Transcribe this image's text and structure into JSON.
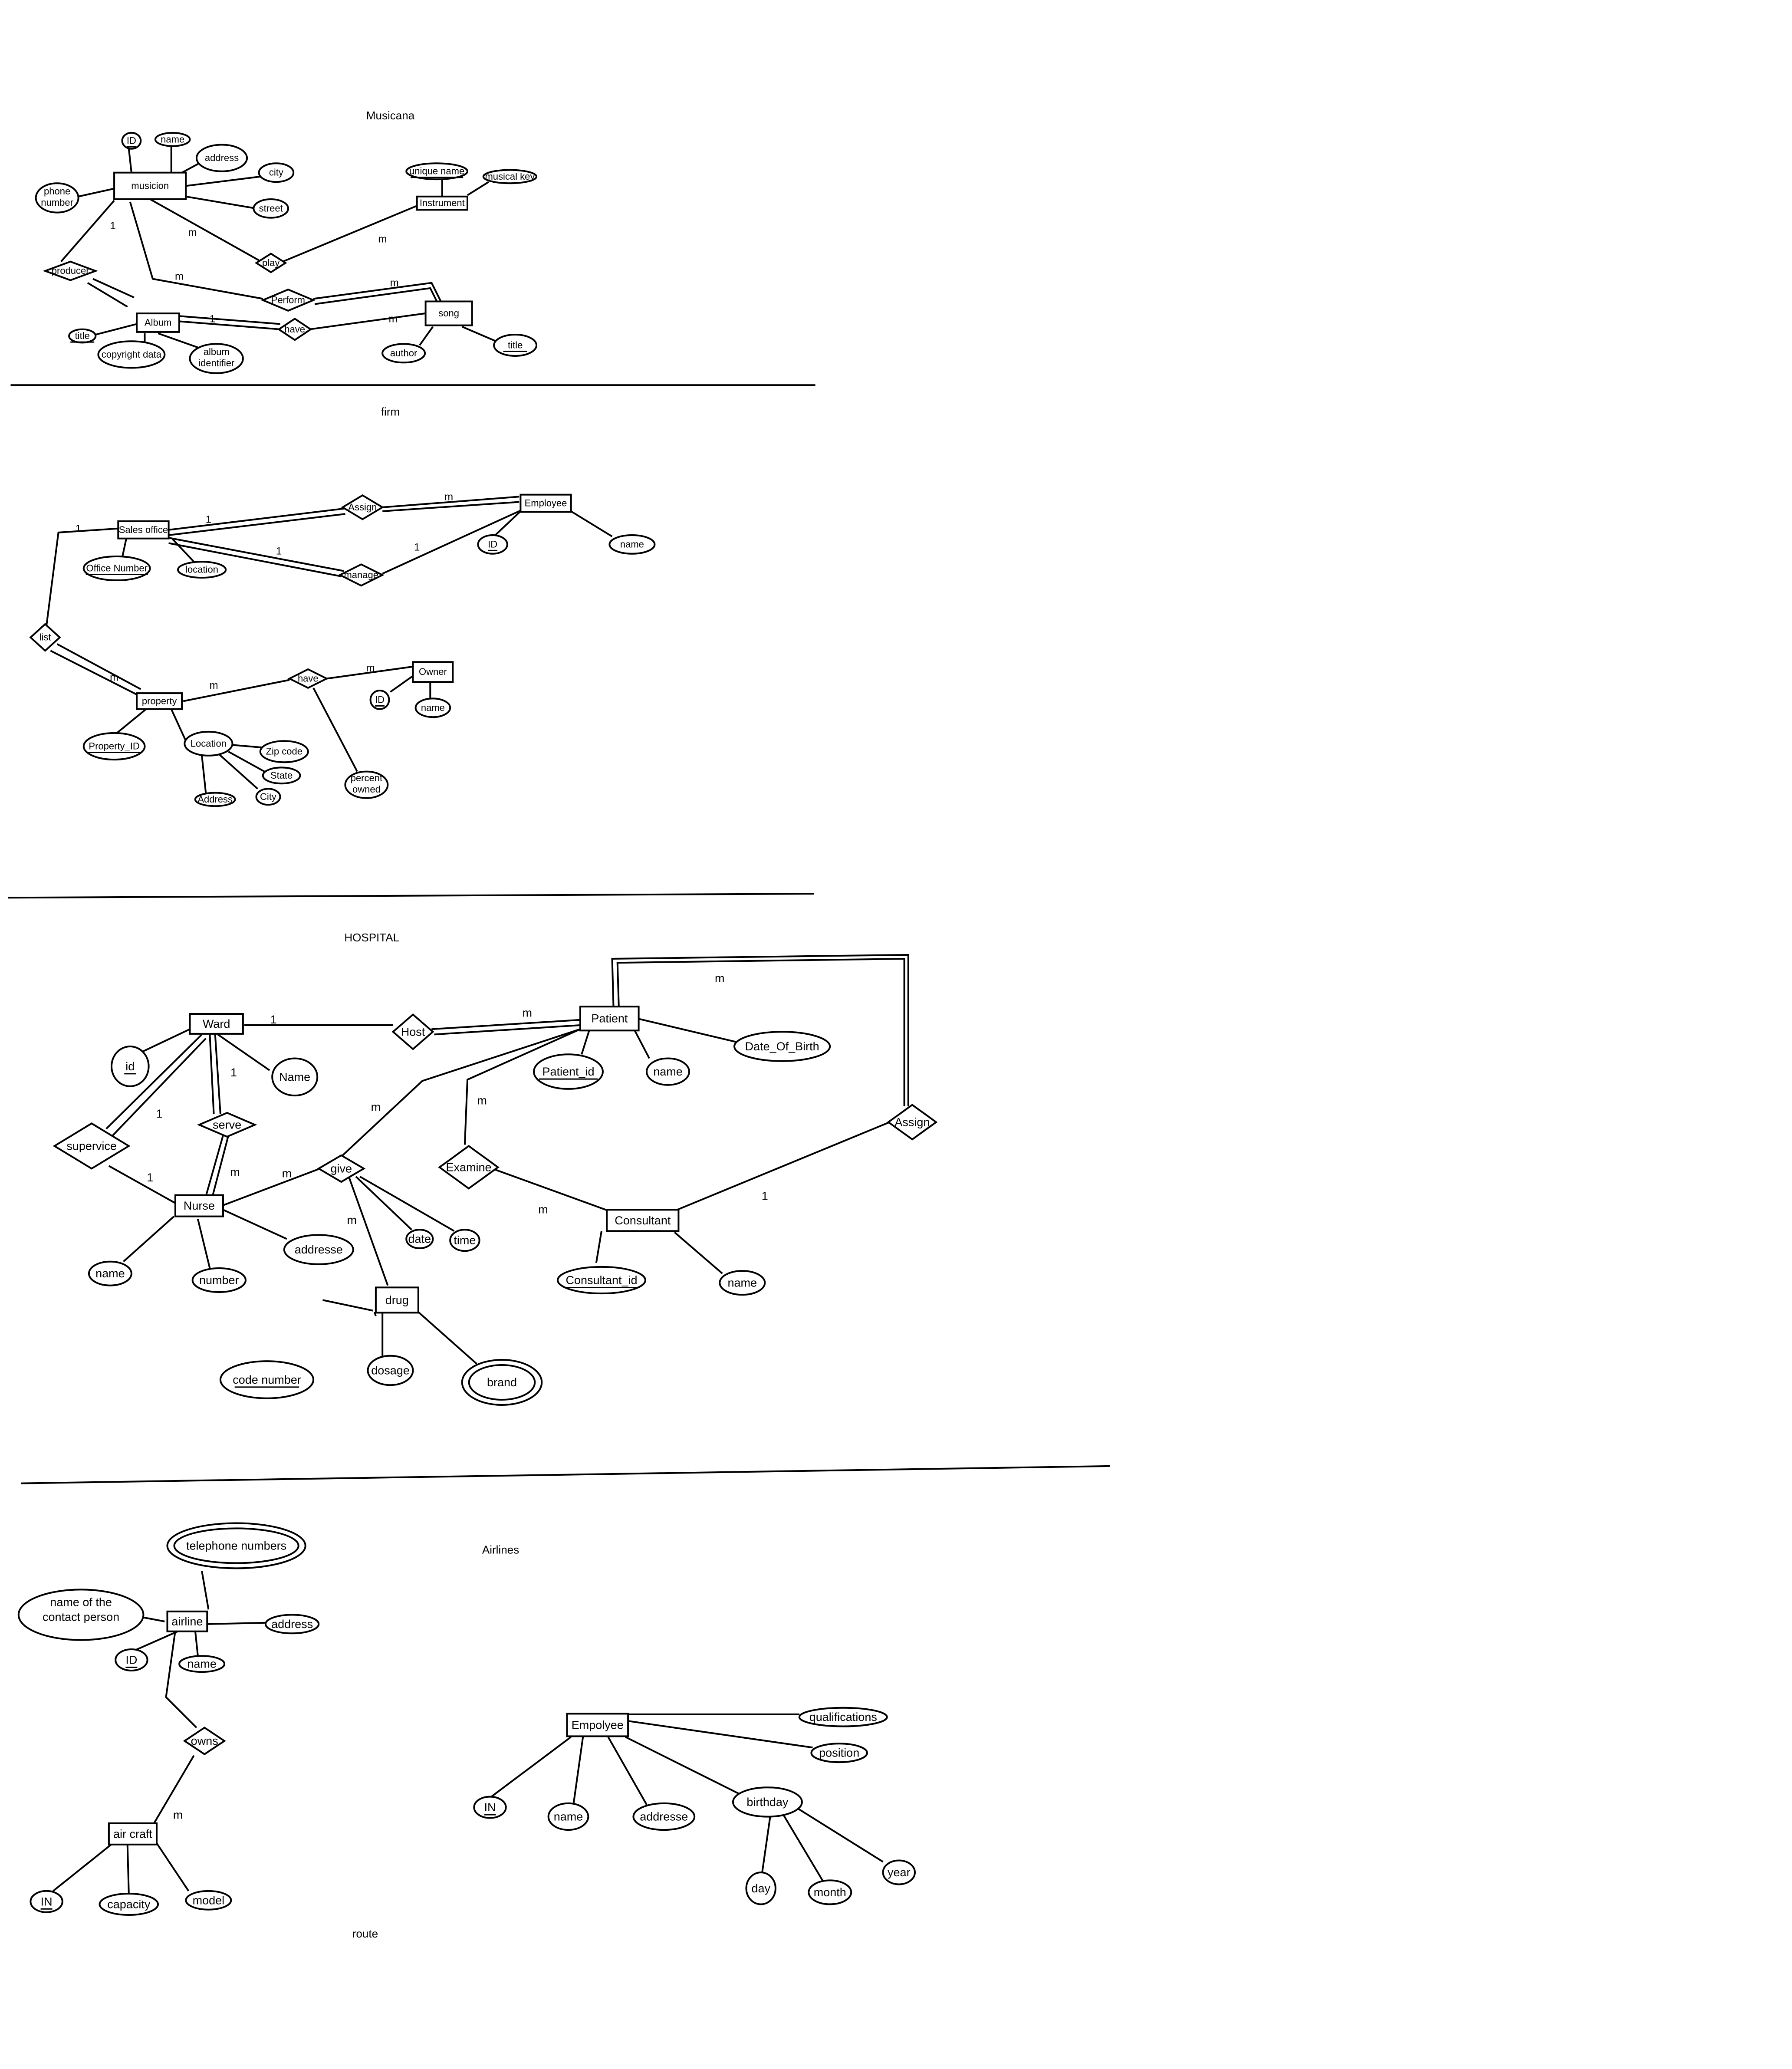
{
  "sections": [
    {
      "id": "musicana",
      "title": "Musicana"
    },
    {
      "id": "firm",
      "title": "firm"
    },
    {
      "id": "hospital",
      "title": "HOSPITAL"
    },
    {
      "id": "airlines",
      "title": "Airlines"
    },
    {
      "id": "route",
      "title": "route"
    }
  ],
  "entities": [
    {
      "id": "musicion",
      "label": "musicion"
    },
    {
      "id": "instrument",
      "label": "Instrument"
    },
    {
      "id": "album",
      "label": "Album"
    },
    {
      "id": "song",
      "label": "song"
    },
    {
      "id": "sales_office",
      "label": "Sales office"
    },
    {
      "id": "employee_firm",
      "label": "Employee"
    },
    {
      "id": "property",
      "label": "property"
    },
    {
      "id": "owner",
      "label": "Owner"
    },
    {
      "id": "ward",
      "label": "Ward"
    },
    {
      "id": "patient",
      "label": "Patient"
    },
    {
      "id": "nurse",
      "label": "Nurse"
    },
    {
      "id": "consultant",
      "label": "Consultant"
    },
    {
      "id": "drug",
      "label": "drug"
    },
    {
      "id": "airline",
      "label": "airline"
    },
    {
      "id": "aircraft",
      "label": "air craft"
    },
    {
      "id": "empolyee",
      "label": "Empolyee"
    }
  ],
  "relationships": [
    {
      "id": "producer",
      "label": "producer"
    },
    {
      "id": "play",
      "label": "play"
    },
    {
      "id": "perform",
      "label": "Perform"
    },
    {
      "id": "have_music",
      "label": "have"
    },
    {
      "id": "assign_firm",
      "label": "Assign"
    },
    {
      "id": "manage",
      "label": "manage"
    },
    {
      "id": "list",
      "label": "list"
    },
    {
      "id": "have_firm",
      "label": "have"
    },
    {
      "id": "host",
      "label": "Host"
    },
    {
      "id": "supervice",
      "label": "supervice"
    },
    {
      "id": "serve",
      "label": "serve"
    },
    {
      "id": "give",
      "label": "give"
    },
    {
      "id": "examine",
      "label": "Examine"
    },
    {
      "id": "assign_hosp",
      "label": "Assign"
    },
    {
      "id": "owns",
      "label": "owns"
    }
  ],
  "attributes": [
    {
      "id": "m_id",
      "label": "ID",
      "key": true
    },
    {
      "id": "m_name",
      "label": "name"
    },
    {
      "id": "m_address",
      "label": "address"
    },
    {
      "id": "m_city",
      "label": "city"
    },
    {
      "id": "m_street",
      "label": "street"
    },
    {
      "id": "m_phone",
      "label": "phone number"
    },
    {
      "id": "i_unique",
      "label": "unique name",
      "key": true
    },
    {
      "id": "i_key",
      "label": "musical key"
    },
    {
      "id": "a_title",
      "label": "title",
      "key": true
    },
    {
      "id": "a_copy",
      "label": "copyright data"
    },
    {
      "id": "a_ident",
      "label": "album identifier"
    },
    {
      "id": "s_author",
      "label": "author"
    },
    {
      "id": "s_title",
      "label": "title",
      "key": true
    },
    {
      "id": "so_num",
      "label": "Office Number",
      "key": true
    },
    {
      "id": "so_loc",
      "label": "location"
    },
    {
      "id": "e_id",
      "label": "ID",
      "key": true
    },
    {
      "id": "e_name",
      "label": "name"
    },
    {
      "id": "p_id",
      "label": "Property_ID",
      "key": true
    },
    {
      "id": "p_loc",
      "label": "Location"
    },
    {
      "id": "p_zip",
      "label": "Zip code"
    },
    {
      "id": "p_state",
      "label": "State"
    },
    {
      "id": "p_city",
      "label": "City"
    },
    {
      "id": "p_addr",
      "label": "Address"
    },
    {
      "id": "o_id",
      "label": "ID",
      "key": true
    },
    {
      "id": "o_name",
      "label": "name"
    },
    {
      "id": "h_pct",
      "label": "percent owned"
    },
    {
      "id": "w_id",
      "label": "id",
      "key": true
    },
    {
      "id": "w_name",
      "label": "Name"
    },
    {
      "id": "pt_id",
      "label": "Patient_id",
      "key": true
    },
    {
      "id": "pt_name",
      "label": "name"
    },
    {
      "id": "pt_dob",
      "label": "Date_Of_Birth"
    },
    {
      "id": "n_name",
      "label": "name"
    },
    {
      "id": "n_num",
      "label": "number"
    },
    {
      "id": "n_addr",
      "label": "addresse"
    },
    {
      "id": "g_date",
      "label": "date"
    },
    {
      "id": "g_time",
      "label": "time"
    },
    {
      "id": "c_id",
      "label": "Consultant_id",
      "key": true
    },
    {
      "id": "c_name",
      "label": "name"
    },
    {
      "id": "d_code",
      "label": "code number",
      "key": true
    },
    {
      "id": "d_dose",
      "label": "dosage"
    },
    {
      "id": "d_brand",
      "label": "brand",
      "multi": true
    },
    {
      "id": "al_tel",
      "label": "telephone numbers",
      "multi": true
    },
    {
      "id": "al_contact",
      "label": "name of the contact person"
    },
    {
      "id": "al_addr",
      "label": "address"
    },
    {
      "id": "al_id",
      "label": "ID",
      "key": true
    },
    {
      "id": "al_name",
      "label": "name"
    },
    {
      "id": "ac_in",
      "label": "IN",
      "key": true
    },
    {
      "id": "ac_cap",
      "label": "capacity"
    },
    {
      "id": "ac_model",
      "label": "model"
    },
    {
      "id": "ep_qual",
      "label": "qualifications"
    },
    {
      "id": "ep_pos",
      "label": "position"
    },
    {
      "id": "ep_in",
      "label": "IN",
      "key": true
    },
    {
      "id": "ep_name",
      "label": "name"
    },
    {
      "id": "ep_addr",
      "label": "addresse"
    },
    {
      "id": "ep_bday",
      "label": "birthday"
    },
    {
      "id": "ep_day",
      "label": "day"
    },
    {
      "id": "ep_month",
      "label": "month"
    },
    {
      "id": "ep_year",
      "label": "year"
    }
  ],
  "cardinalities": [
    {
      "id": "c1",
      "text": "1"
    },
    {
      "id": "c2",
      "text": "m"
    },
    {
      "id": "c3",
      "text": "m"
    },
    {
      "id": "c4",
      "text": "m"
    },
    {
      "id": "c5",
      "text": "m"
    },
    {
      "id": "c6",
      "text": "1"
    },
    {
      "id": "c7",
      "text": "m"
    },
    {
      "id": "c8",
      "text": "1"
    },
    {
      "id": "c9",
      "text": "1"
    },
    {
      "id": "c10",
      "text": "m"
    },
    {
      "id": "c11",
      "text": "1"
    },
    {
      "id": "c12",
      "text": "1"
    },
    {
      "id": "c13",
      "text": "m"
    },
    {
      "id": "c14",
      "text": "m"
    },
    {
      "id": "c15",
      "text": "m"
    },
    {
      "id": "c16",
      "text": "1"
    },
    {
      "id": "c17",
      "text": "m"
    },
    {
      "id": "c18",
      "text": "m"
    },
    {
      "id": "c19",
      "text": "1"
    },
    {
      "id": "c20",
      "text": "1"
    },
    {
      "id": "c21",
      "text": "1"
    },
    {
      "id": "c22",
      "text": "m"
    },
    {
      "id": "c23",
      "text": "m"
    },
    {
      "id": "c24",
      "text": "m"
    },
    {
      "id": "c25",
      "text": "m"
    },
    {
      "id": "c26",
      "text": "m"
    },
    {
      "id": "c27",
      "text": "1"
    },
    {
      "id": "c28",
      "text": "m"
    },
    {
      "id": "c29",
      "text": "m"
    }
  ]
}
